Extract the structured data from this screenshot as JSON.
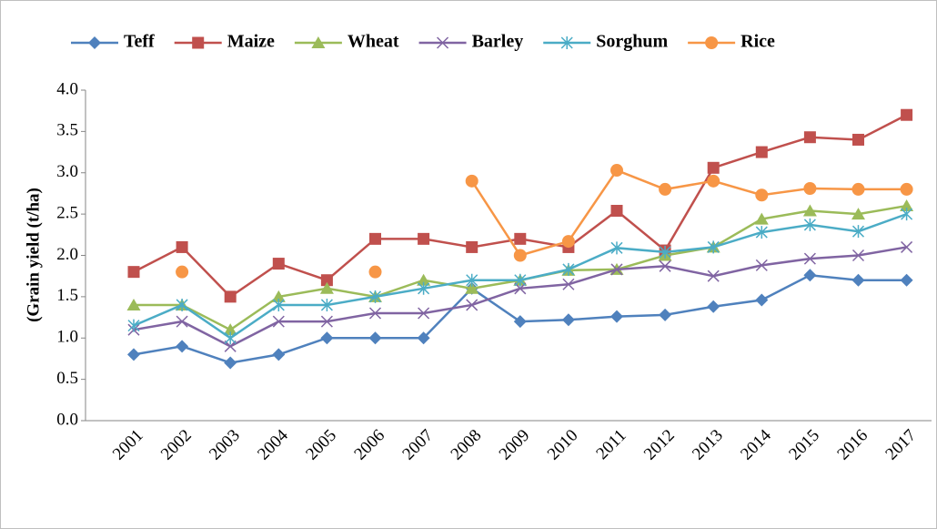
{
  "chart_data": {
    "type": "line",
    "y_label": "(Grain yield (t/ha)",
    "categories": [
      "2001",
      "2002",
      "2003",
      "2004",
      "2005",
      "2006",
      "2007",
      "2008",
      "2009",
      "2010",
      "2011",
      "2012",
      "2013",
      "2014",
      "2015",
      "2016",
      "2017"
    ],
    "series": [
      {
        "name": "Teff",
        "color": "#4f81bd",
        "marker": "diamond",
        "values": [
          0.8,
          0.9,
          0.7,
          0.8,
          1.0,
          1.0,
          1.0,
          1.6,
          1.2,
          1.22,
          1.26,
          1.28,
          1.38,
          1.46,
          1.76,
          1.7,
          1.7
        ]
      },
      {
        "name": "Maize",
        "color": "#c0504d",
        "marker": "square",
        "values": [
          1.8,
          2.1,
          1.5,
          1.9,
          1.7,
          2.2,
          2.2,
          2.1,
          2.2,
          2.1,
          2.54,
          2.06,
          3.06,
          3.25,
          3.43,
          3.4,
          3.7
        ]
      },
      {
        "name": "Wheat",
        "color": "#9bbb59",
        "marker": "triangle",
        "values": [
          1.4,
          1.4,
          1.1,
          1.5,
          1.6,
          1.5,
          1.7,
          1.6,
          1.7,
          1.82,
          1.83,
          2.0,
          2.1,
          2.44,
          2.54,
          2.5,
          2.6
        ]
      },
      {
        "name": "Barley",
        "color": "#8064a2",
        "marker": "x",
        "values": [
          1.1,
          1.2,
          0.9,
          1.2,
          1.2,
          1.3,
          1.3,
          1.4,
          1.6,
          1.65,
          1.83,
          1.87,
          1.75,
          1.88,
          1.96,
          2.0,
          2.1
        ]
      },
      {
        "name": "Sorghum",
        "color": "#4bacc6",
        "marker": "star",
        "values": [
          1.15,
          1.4,
          1.0,
          1.4,
          1.4,
          1.5,
          1.6,
          1.7,
          1.7,
          1.83,
          2.09,
          2.04,
          2.1,
          2.28,
          2.37,
          2.29,
          2.5
        ]
      },
      {
        "name": "Rice",
        "color": "#f79646",
        "marker": "circle",
        "values": [
          null,
          1.8,
          null,
          null,
          null,
          1.8,
          null,
          2.9,
          2.0,
          2.17,
          3.03,
          2.8,
          2.9,
          2.73,
          2.81,
          2.8,
          2.8
        ]
      }
    ],
    "ylim": [
      0,
      4
    ],
    "yticks": [
      {
        "value": 0,
        "label": "0.0"
      },
      {
        "value": 0.5,
        "label": "0.5"
      },
      {
        "value": 1,
        "label": "1.0"
      },
      {
        "value": 1.5,
        "label": "1.5"
      },
      {
        "value": 2,
        "label": "2.0"
      },
      {
        "value": 2.5,
        "label": "2.5"
      },
      {
        "value": 3,
        "label": "3.0"
      },
      {
        "value": 3.5,
        "label": "3.5"
      },
      {
        "value": 4,
        "label": "4.0"
      }
    ],
    "grid": false,
    "legend": "top"
  }
}
